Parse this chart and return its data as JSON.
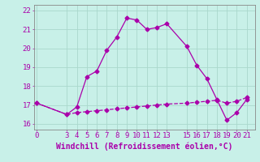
{
  "xlabel": "Windchill (Refroidissement éolien,°C)",
  "bg_color": "#c8f0e8",
  "grid_color": "#aad8cc",
  "line_color": "#aa00aa",
  "x_hours": [
    0,
    3,
    4,
    5,
    6,
    7,
    8,
    9,
    10,
    11,
    12,
    13,
    15,
    16,
    17,
    18,
    19,
    20,
    21
  ],
  "temp_values": [
    17.1,
    16.5,
    16.9,
    18.5,
    18.8,
    19.9,
    20.6,
    21.6,
    21.5,
    21.0,
    21.1,
    21.3,
    20.1,
    19.1,
    18.4,
    17.3,
    16.2,
    16.6,
    17.3
  ],
  "windchill_values": [
    17.1,
    16.5,
    16.6,
    16.65,
    16.7,
    16.75,
    16.8,
    16.85,
    16.9,
    16.95,
    17.0,
    17.05,
    17.1,
    17.15,
    17.2,
    17.25,
    17.1,
    17.2,
    17.4
  ],
  "ylim": [
    15.7,
    22.3
  ],
  "xlim": [
    -0.3,
    21.8
  ],
  "xticks": [
    0,
    3,
    4,
    5,
    6,
    7,
    8,
    9,
    10,
    11,
    12,
    13,
    15,
    16,
    17,
    18,
    19,
    20,
    21
  ],
  "yticks": [
    16,
    17,
    18,
    19,
    20,
    21,
    22
  ],
  "tick_fontsize": 6.5,
  "xlabel_fontsize": 7,
  "marker": "D",
  "markersize": 2.5,
  "linewidth": 0.9
}
